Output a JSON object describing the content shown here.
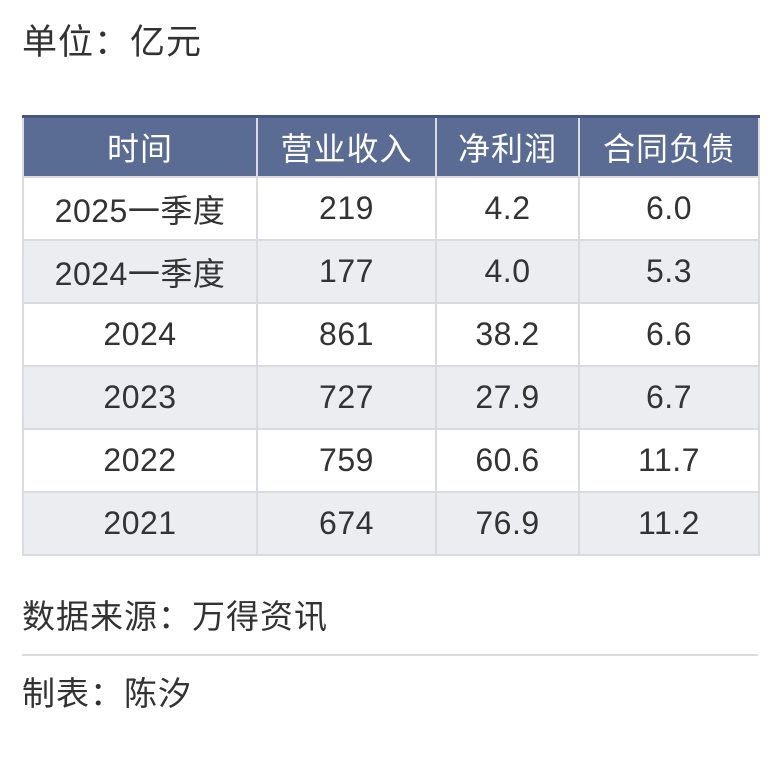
{
  "title": {
    "unit_label": "单位：亿元"
  },
  "table": {
    "columns": [
      "时间",
      "营业收入",
      "净利润",
      "合同负债"
    ],
    "rows": [
      [
        "2025一季度",
        "219",
        "4.2",
        "6.0"
      ],
      [
        "2024一季度",
        "177",
        "4.0",
        "5.3"
      ],
      [
        "2024",
        "861",
        "38.2",
        "6.6"
      ],
      [
        "2023",
        "727",
        "27.9",
        "6.7"
      ],
      [
        "2022",
        "759",
        "60.6",
        "11.7"
      ],
      [
        "2021",
        "674",
        "76.9",
        "11.2"
      ]
    ]
  },
  "footer": {
    "source": "数据来源：万得资讯",
    "author": "制表：陈汐"
  },
  "colors": {
    "header_bg": "#5a6b94",
    "header_top_border": "#46567e",
    "header_text": "#ffffff",
    "row_alt_bg": "#ebedf1",
    "cell_border": "#d9dbe0",
    "text": "#333333",
    "footer_divider": "#dcdcdc",
    "page_bg": "#ffffff"
  },
  "chart_data": {
    "type": "table",
    "title": "单位：亿元",
    "columns": [
      "时间",
      "营业收入",
      "净利润",
      "合同负债"
    ],
    "rows": [
      [
        "2025一季度",
        219,
        4.2,
        6.0
      ],
      [
        "2024一季度",
        177,
        4.0,
        5.3
      ],
      [
        "2024",
        861,
        38.2,
        6.6
      ],
      [
        "2023",
        727,
        27.9,
        6.7
      ],
      [
        "2022",
        759,
        60.6,
        11.7
      ],
      [
        "2021",
        674,
        76.9,
        11.2
      ]
    ],
    "unit": "亿元",
    "source": "数据来源：万得资讯",
    "author": "制表：陈汐",
    "layout": {
      "header_style": "slate-blue banded header, white text",
      "row_striping": "white / light gray alternating starting white",
      "grid": "light gray cell borders"
    }
  }
}
